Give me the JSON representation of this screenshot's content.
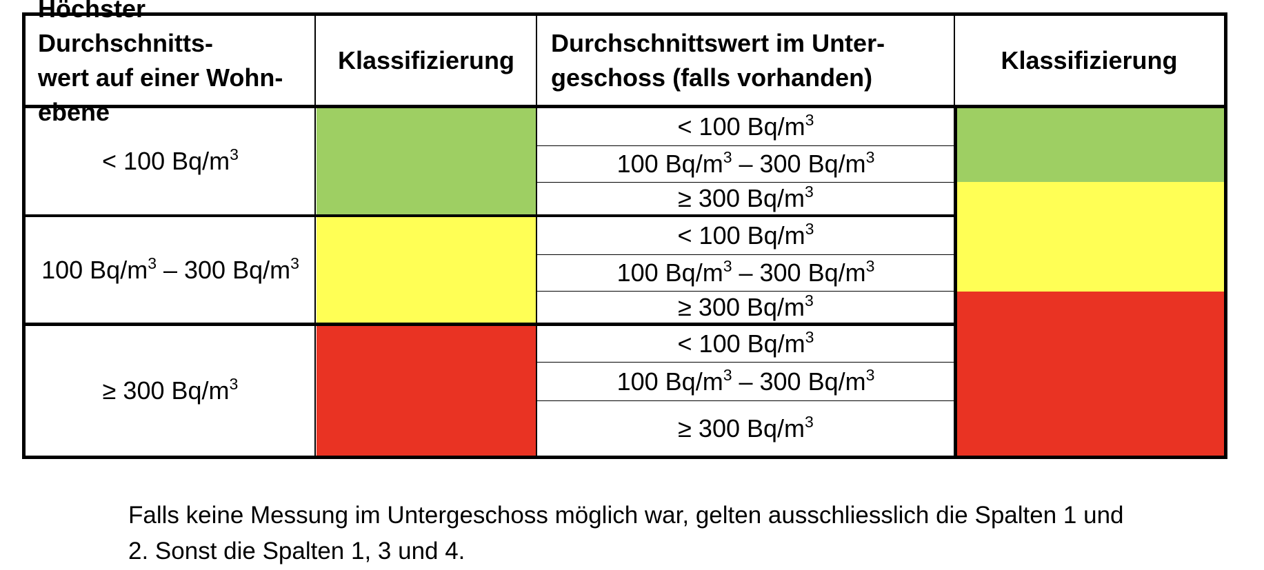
{
  "table": {
    "headers": {
      "col1_line1": "Höchster Durchschnitts-",
      "col1_line2": "wert auf einer Wohn-",
      "col1_line3": "ebene",
      "col2": "Klassifizierung",
      "col3_line1": "Durchschnittswert im Unter-",
      "col3_line2": "geschoss (falls vorhanden)",
      "col4": "Klassifizierung"
    },
    "level": [
      {
        "pre": "< 100 Bq/m",
        "sup": "3",
        "mid": "",
        "sup2": ""
      },
      {
        "pre": "100 Bq/m",
        "sup": "3",
        "mid": " – 300 Bq/m",
        "sup2": "3"
      },
      {
        "pre": "≥ 300 Bq/m",
        "sup": "3",
        "mid": "",
        "sup2": ""
      }
    ],
    "basement": [
      {
        "pre": "< 100 Bq/m",
        "sup": "3",
        "mid": "",
        "sup2": ""
      },
      {
        "pre": "100 Bq/m",
        "sup": "3",
        "mid": " – 300 Bq/m",
        "sup2": "3"
      },
      {
        "pre": "≥ 300 Bq/m",
        "sup": "3",
        "mid": "",
        "sup2": ""
      },
      {
        "pre": "< 100 Bq/m",
        "sup": "3",
        "mid": "",
        "sup2": ""
      },
      {
        "pre": "100 Bq/m",
        "sup": "3",
        "mid": " – 300 Bq/m",
        "sup2": "3"
      },
      {
        "pre": "≥ 300 Bq/m",
        "sup": "3",
        "mid": "",
        "sup2": ""
      },
      {
        "pre": "< 100 Bq/m",
        "sup": "3",
        "mid": "",
        "sup2": ""
      },
      {
        "pre": "100 Bq/m",
        "sup": "3",
        "mid": " – 300 Bq/m",
        "sup2": "3"
      },
      {
        "pre": "≥ 300 Bq/m",
        "sup": "3",
        "mid": "",
        "sup2": ""
      }
    ],
    "colors": {
      "green": "#9ecf63",
      "yellow": "#ffff55",
      "red": "#e93323"
    }
  },
  "note": {
    "line1": "Falls keine Messung im Untergeschoss möglich war, gelten ausschliesslich die Spalten 1 und",
    "line2": "2. Sonst die Spalten 1, 3 und 4."
  }
}
